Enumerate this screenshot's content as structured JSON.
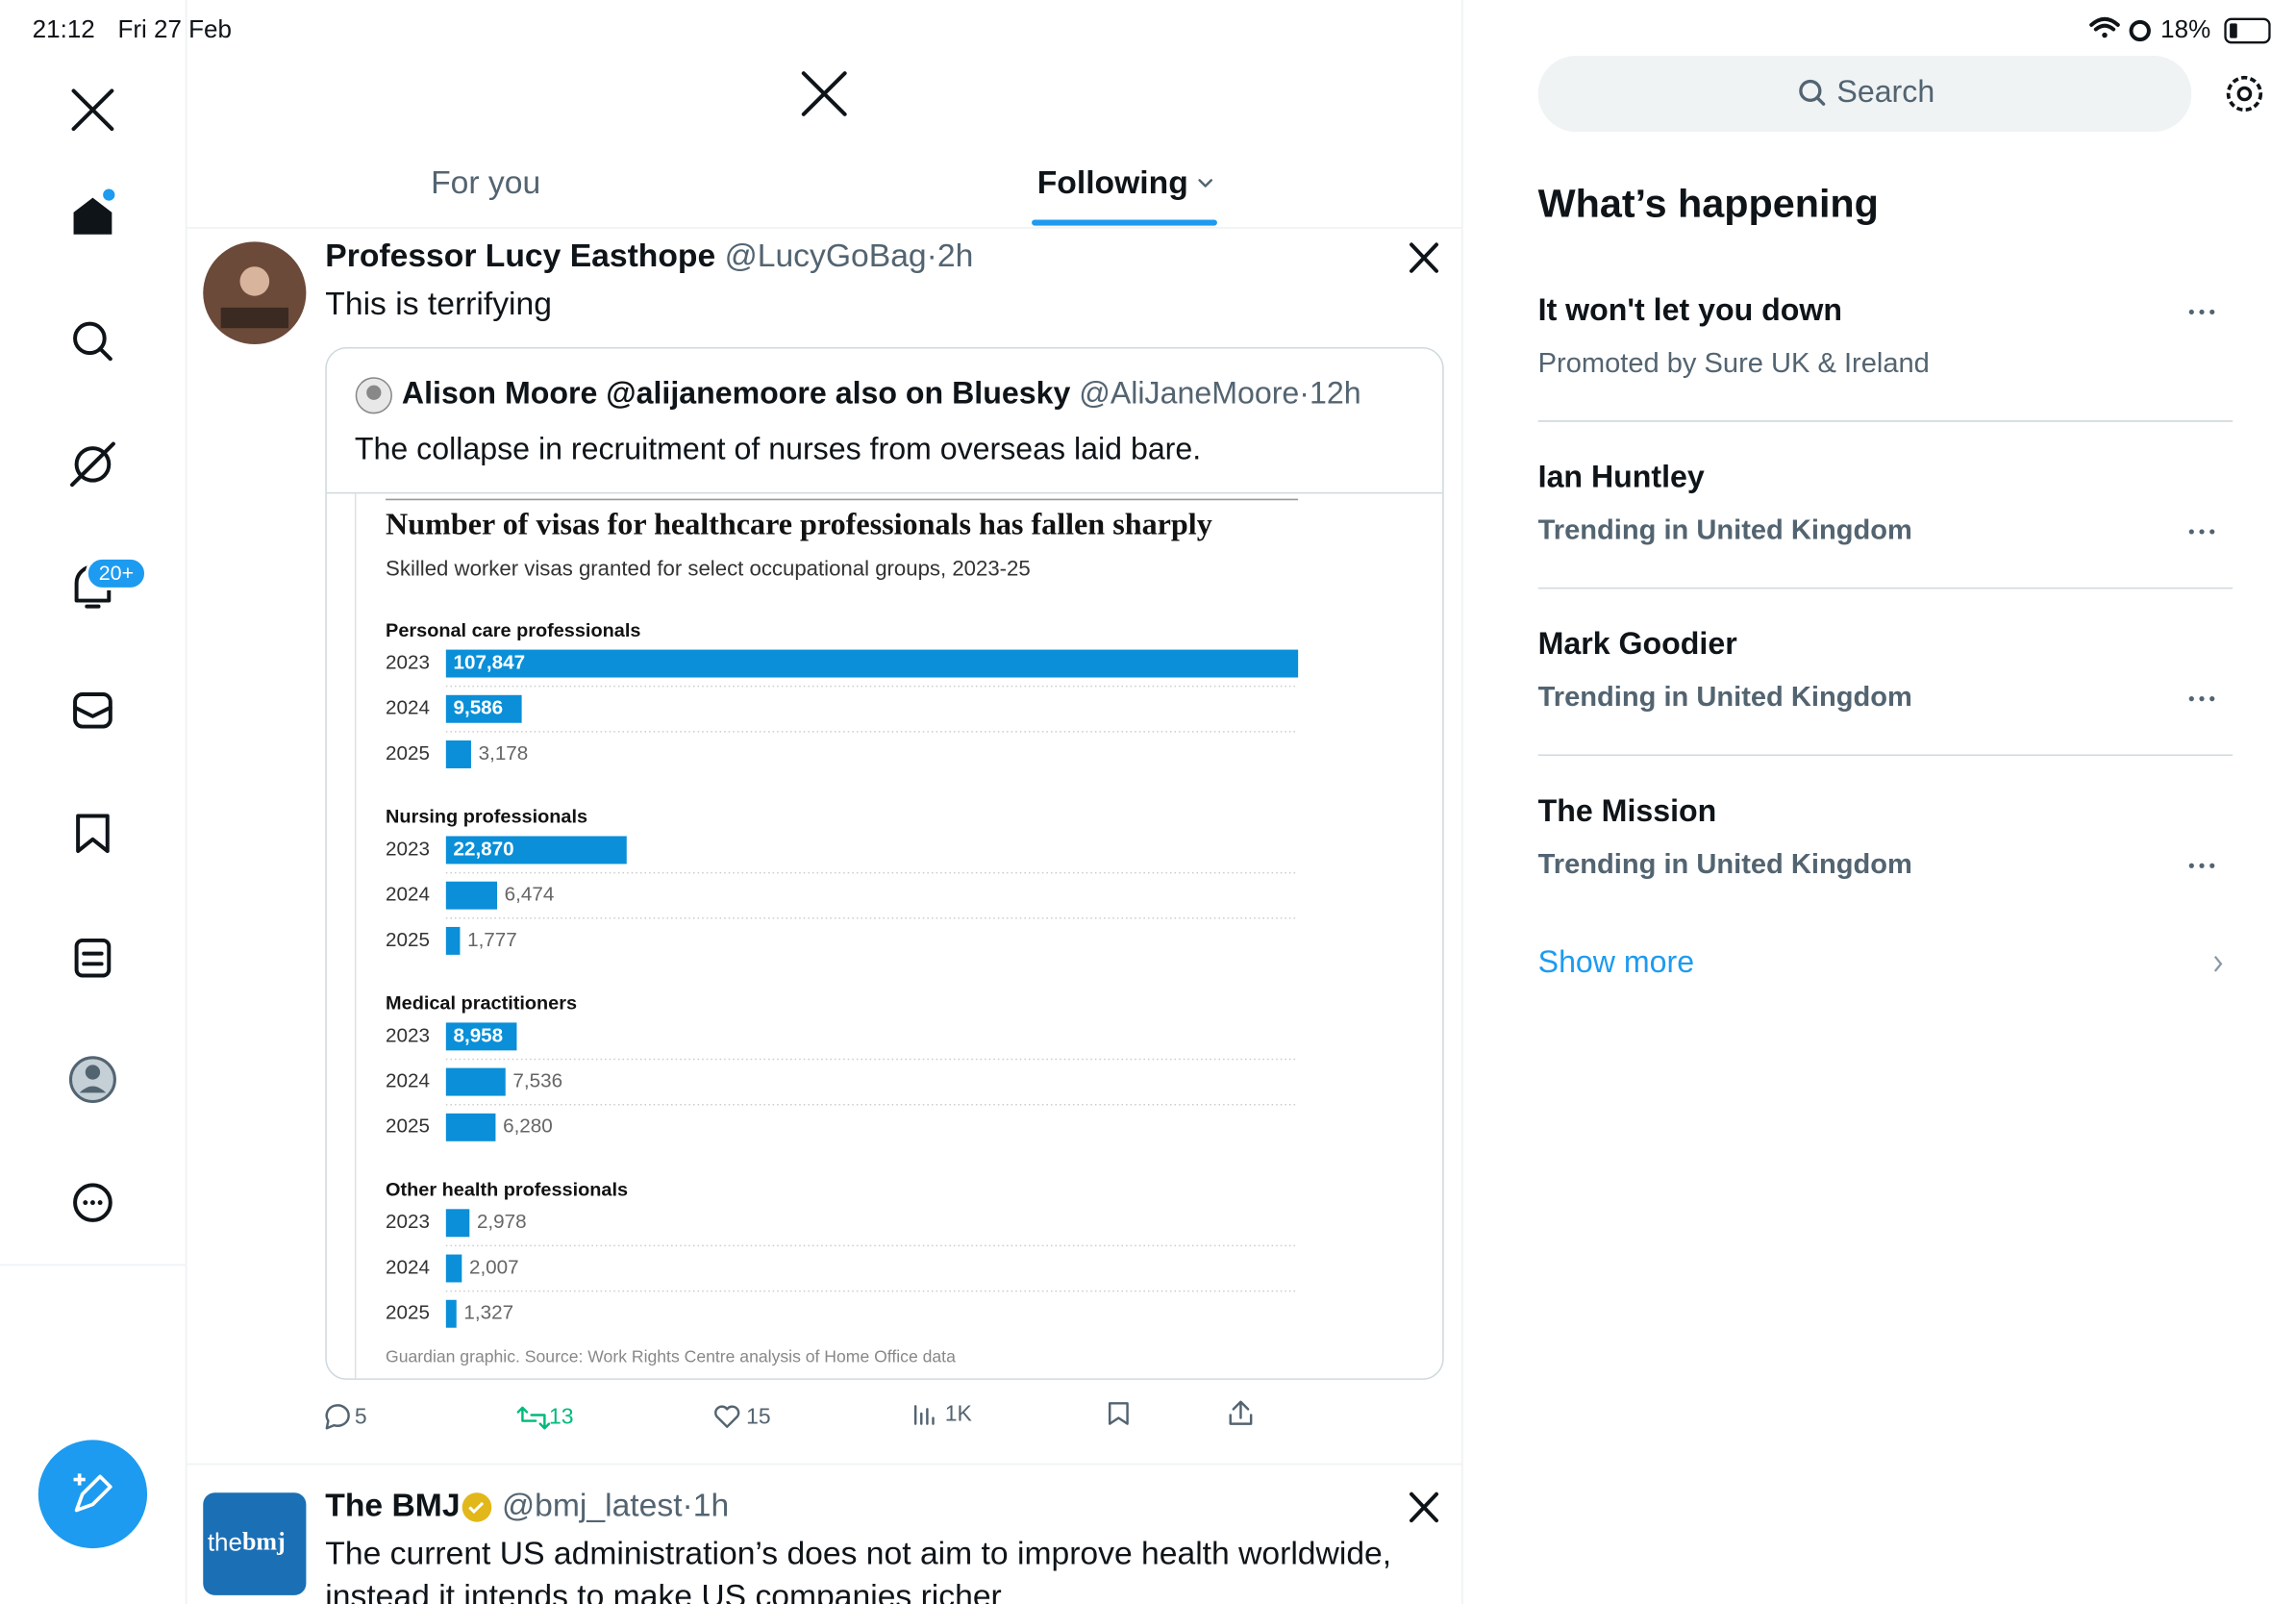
{
  "status_bar": {
    "time": "21:12",
    "date": "Fri 27 Feb",
    "battery": "18%"
  },
  "sidebar": {
    "notification_badge": "20+"
  },
  "tabs": [
    "For you",
    "Following"
  ],
  "tweets": [
    {
      "author": "Professor Lucy Easthope",
      "handle": "@LucyGoBag",
      "time": "2h",
      "text": "This is terrifying",
      "quote": {
        "author": "Alison Moore @alijanemoore also on Bluesky",
        "handle": "@AliJaneMoore",
        "time": "12h",
        "text": "The collapse in recruitment of nurses from overseas laid bare.",
        "chart": {
          "type": "bar",
          "title": "Number of visas for healthcare professionals has fallen sharply",
          "subtitle": "Skilled worker visas granted for select occupational groups, 2023-25",
          "color": "#0a8fd8",
          "groups": [
            {
              "name": "Personal care professionals",
              "categories": [
                "2023",
                "2024",
                "2025"
              ],
              "values": [
                107847,
                9586,
                3178
              ],
              "value_labels": [
                "107,847",
                "9,586",
                "3,178"
              ]
            },
            {
              "name": "Nursing professionals",
              "categories": [
                "2023",
                "2024",
                "2025"
              ],
              "values": [
                22870,
                6474,
                1777
              ],
              "value_labels": [
                "22,870",
                "6,474",
                "1,777"
              ]
            },
            {
              "name": "Medical practitioners",
              "categories": [
                "2023",
                "2024",
                "2025"
              ],
              "values": [
                8958,
                7536,
                6280
              ],
              "value_labels": [
                "8,958",
                "7,536",
                "6,280"
              ]
            },
            {
              "name": "Other health professionals",
              "categories": [
                "2023",
                "2024",
                "2025"
              ],
              "values": [
                2978,
                2007,
                1327
              ],
              "value_labels": [
                "2,978",
                "2,007",
                "1,327"
              ]
            }
          ],
          "source": "Guardian graphic. Source: Work Rights Centre analysis of Home Office data"
        }
      },
      "stats": {
        "replies": "5",
        "reposts": "13",
        "likes": "15",
        "views": "1K"
      }
    },
    {
      "author": "The BMJ",
      "handle": "@bmj_latest",
      "time": "1h",
      "avatar_text": [
        "the",
        "bmj"
      ],
      "text_lines": [
        "The current US administration’s does not aim to improve health worldwide,",
        "instead it intends to make US companies richer"
      ]
    }
  ],
  "search": {
    "placeholder": "Search"
  },
  "trends": {
    "heading": "What’s happening",
    "items": [
      {
        "title": "It won't let you down",
        "subtitle": "Promoted by Sure UK & Ireland"
      },
      {
        "title": "Ian Huntley",
        "subtitle": "Trending in United Kingdom"
      },
      {
        "title": "Mark Goodier",
        "subtitle": "Trending in United Kingdom"
      },
      {
        "title": "The Mission",
        "subtitle": "Trending in United Kingdom"
      }
    ],
    "show_more": "Show more"
  }
}
